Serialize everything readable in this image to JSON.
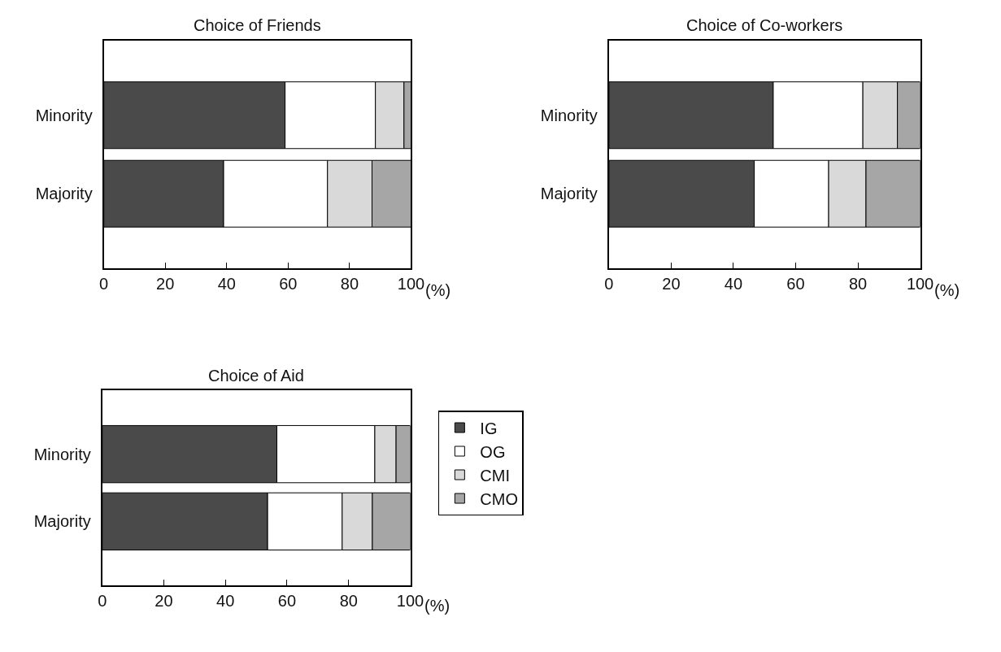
{
  "chart_data": [
    {
      "type": "bar",
      "title": "Choice of Friends",
      "orientation": "horizontal",
      "stacked": true,
      "categories": [
        "Minority",
        "Majority"
      ],
      "xlabel": "(%)",
      "xlim": [
        0,
        100
      ],
      "xticks": [
        0,
        20,
        40,
        60,
        80,
        100
      ],
      "series": [
        {
          "color": "#4a4a4a",
          "values": [
            59,
            39
          ]
        },
        {
          "color": "#ffffff",
          "values": [
            29.4,
            33.8
          ]
        },
        {
          "color": "#d9d9d9",
          "values": [
            9.3,
            14.5
          ]
        },
        {
          "color": "#a6a6a6",
          "values": [
            2.3,
            12.7
          ]
        }
      ]
    },
    {
      "type": "bar",
      "title": "Choice of Co-workers",
      "orientation": "horizontal",
      "stacked": true,
      "categories": [
        "Minority",
        "Majority"
      ],
      "xlabel": "(%)",
      "xlim": [
        0,
        100
      ],
      "xticks": [
        0,
        20,
        40,
        60,
        80,
        100
      ],
      "series": [
        {
          "color": "#4a4a4a",
          "values": [
            52.8,
            46.7
          ]
        },
        {
          "color": "#ffffff",
          "values": [
            28.8,
            23.9
          ]
        },
        {
          "color": "#d9d9d9",
          "values": [
            11.1,
            12
          ]
        },
        {
          "color": "#a6a6a6",
          "values": [
            7.3,
            17.4
          ]
        }
      ]
    },
    {
      "type": "bar",
      "title": "Choice of Aid",
      "orientation": "horizontal",
      "stacked": true,
      "categories": [
        "Minority",
        "Majority"
      ],
      "xlabel": "(%)",
      "xlim": [
        0,
        100
      ],
      "xticks": [
        0,
        20,
        40,
        60,
        80,
        100
      ],
      "legend": "right",
      "series": [
        {
          "name": "IG",
          "color": "#4a4a4a",
          "values": [
            56.7,
            53.7
          ]
        },
        {
          "name": "OG",
          "color": "#ffffff",
          "values": [
            31.8,
            24.2
          ]
        },
        {
          "name": "CMI",
          "color": "#d9d9d9",
          "values": [
            6.9,
            9.8
          ]
        },
        {
          "name": "CMO",
          "color": "#a6a6a6",
          "values": [
            4.6,
            12.3
          ]
        }
      ]
    }
  ]
}
